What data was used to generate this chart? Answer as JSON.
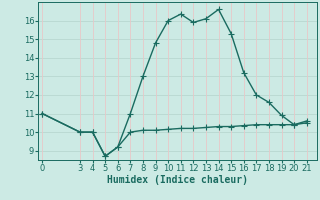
{
  "xlabel": "Humidex (Indice chaleur)",
  "bg_color": "#cceae4",
  "grid_color_h": "#b8d8d0",
  "grid_color_v": "#e8c8c8",
  "line_color": "#1a6b60",
  "x_upper": [
    0,
    3,
    4,
    5,
    6,
    7,
    8,
    9,
    10,
    11,
    12,
    13,
    14,
    15,
    16,
    17,
    18,
    19,
    20,
    21
  ],
  "y_upper": [
    11.0,
    10.0,
    10.0,
    8.7,
    9.2,
    11.0,
    13.0,
    14.8,
    16.0,
    16.35,
    15.9,
    16.1,
    16.6,
    15.3,
    13.2,
    12.0,
    11.6,
    10.9,
    10.4,
    10.6
  ],
  "x_lower": [
    0,
    3,
    4,
    5,
    6,
    7,
    8,
    9,
    10,
    11,
    12,
    13,
    14,
    15,
    16,
    17,
    18,
    19,
    20,
    21
  ],
  "y_lower": [
    11.0,
    10.0,
    10.0,
    8.7,
    9.2,
    10.0,
    10.1,
    10.1,
    10.15,
    10.2,
    10.2,
    10.25,
    10.3,
    10.3,
    10.35,
    10.4,
    10.4,
    10.4,
    10.4,
    10.5
  ],
  "ylim": [
    8.5,
    17.0
  ],
  "xlim": [
    -0.3,
    21.8
  ],
  "xticks": [
    0,
    3,
    4,
    5,
    6,
    7,
    8,
    9,
    10,
    11,
    12,
    13,
    14,
    15,
    16,
    17,
    18,
    19,
    20,
    21
  ],
  "yticks": [
    9,
    10,
    11,
    12,
    13,
    14,
    15,
    16
  ],
  "markersize": 2.5,
  "linewidth": 1.0,
  "xlabel_fontsize": 7,
  "tick_fontsize": 6
}
